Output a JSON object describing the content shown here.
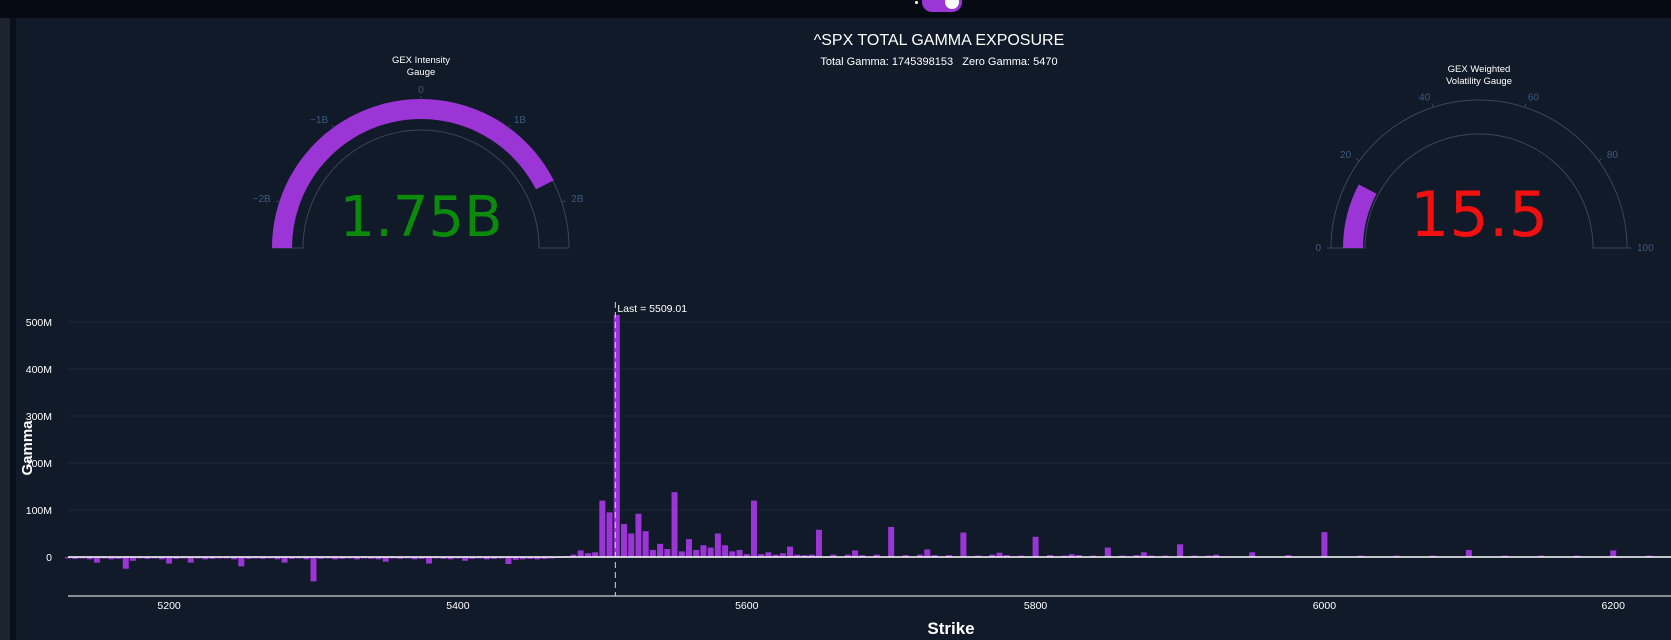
{
  "header": {
    "title": "^SPX TOTAL GAMMA EXPOSURE",
    "subtitle": "Total Gamma: 1745398153   Zero Gamma: 5470"
  },
  "gauges": {
    "gex": {
      "title_line1": "GEX Intensity",
      "title_line2": "Gauge",
      "value_text": "1.75B",
      "value": 1.75,
      "range": [
        -2.5,
        2.5
      ],
      "ticks": [
        {
          "v": -2,
          "label": "−2B"
        },
        {
          "v": -1,
          "label": "−1B"
        },
        {
          "v": 0,
          "label": "0"
        },
        {
          "v": 1,
          "label": "1B"
        },
        {
          "v": 2,
          "label": "2B"
        }
      ],
      "bar_color": "#9b35d6",
      "value_color": "#0b8a0b"
    },
    "vol": {
      "title_line1": "GEX Weighted",
      "title_line2": "Volatility Gauge",
      "value_text": "15.5",
      "value": 15.5,
      "range": [
        0,
        100
      ],
      "ticks": [
        {
          "v": 0,
          "label": "0"
        },
        {
          "v": 20,
          "label": "20"
        },
        {
          "v": 40,
          "label": "40"
        },
        {
          "v": 60,
          "label": "60"
        },
        {
          "v": 80,
          "label": "80"
        },
        {
          "v": 100,
          "label": "100"
        }
      ],
      "bar_color": "#9b35d6",
      "value_color": "#f01010"
    }
  },
  "chart_data": {
    "type": "bar",
    "title": "",
    "xlabel": "Strike",
    "ylabel": "Gamma",
    "xlim": [
      5130,
      6240
    ],
    "ylim": [
      -80000000,
      540000000
    ],
    "xticks": [
      5200,
      5400,
      5600,
      5800,
      6000,
      6200
    ],
    "yticks": [
      {
        "v": 0,
        "label": "0"
      },
      {
        "v": 100000000,
        "label": "100M"
      },
      {
        "v": 200000000,
        "label": "200M"
      },
      {
        "v": 300000000,
        "label": "300M"
      },
      {
        "v": 400000000,
        "label": "400M"
      },
      {
        "v": 500000000,
        "label": "500M"
      }
    ],
    "bar_color": "#9b35d6",
    "annotation": {
      "text": "Last = 5509.01",
      "x": 5509.01
    },
    "x": [
      5130,
      5135,
      5140,
      5145,
      5150,
      5155,
      5160,
      5165,
      5170,
      5175,
      5180,
      5185,
      5190,
      5195,
      5200,
      5205,
      5210,
      5215,
      5220,
      5225,
      5230,
      5235,
      5240,
      5245,
      5250,
      5255,
      5260,
      5265,
      5270,
      5275,
      5280,
      5285,
      5290,
      5295,
      5300,
      5305,
      5310,
      5315,
      5320,
      5325,
      5330,
      5335,
      5340,
      5345,
      5350,
      5355,
      5360,
      5365,
      5370,
      5375,
      5380,
      5385,
      5390,
      5395,
      5400,
      5405,
      5410,
      5415,
      5420,
      5425,
      5430,
      5435,
      5440,
      5445,
      5450,
      5455,
      5460,
      5465,
      5470,
      5475,
      5480,
      5485,
      5490,
      5495,
      5500,
      5505,
      5510,
      5515,
      5520,
      5525,
      5530,
      5535,
      5540,
      5545,
      5550,
      5555,
      5560,
      5565,
      5570,
      5575,
      5580,
      5585,
      5590,
      5595,
      5600,
      5605,
      5610,
      5615,
      5620,
      5625,
      5630,
      5635,
      5640,
      5645,
      5650,
      5660,
      5670,
      5675,
      5680,
      5690,
      5700,
      5710,
      5720,
      5725,
      5730,
      5740,
      5750,
      5760,
      5770,
      5775,
      5780,
      5790,
      5800,
      5810,
      5820,
      5825,
      5830,
      5840,
      5850,
      5860,
      5870,
      5875,
      5880,
      5890,
      5900,
      5910,
      5920,
      5925,
      5950,
      5975,
      6000,
      6025,
      6050,
      6075,
      6100,
      6125,
      6150,
      6175,
      6200,
      6225
    ],
    "values": [
      -3000000,
      -4000000,
      -3000000,
      -5000000,
      -12000000,
      -3000000,
      -5000000,
      -4000000,
      -25000000,
      -8000000,
      -3000000,
      -4000000,
      -3000000,
      -5000000,
      -14000000,
      -4000000,
      -3000000,
      -12000000,
      -3000000,
      -5000000,
      -4000000,
      -3000000,
      -3000000,
      -5000000,
      -20000000,
      -4000000,
      -3000000,
      -4000000,
      -3000000,
      -5000000,
      -12000000,
      -4000000,
      -3000000,
      -5000000,
      -52000000,
      -4000000,
      -3000000,
      -5000000,
      -4000000,
      -3000000,
      -5000000,
      -3000000,
      -4000000,
      -5000000,
      -10000000,
      -3000000,
      -4000000,
      -3000000,
      -5000000,
      -4000000,
      -14000000,
      -3000000,
      -4000000,
      -5000000,
      -3000000,
      -8000000,
      -4000000,
      -3000000,
      -5000000,
      -4000000,
      -3000000,
      -15000000,
      -6000000,
      -5000000,
      -4000000,
      -5000000,
      -4000000,
      -3000000,
      -2000000,
      2000000,
      5000000,
      14000000,
      8000000,
      10000000,
      120000000,
      95000000,
      515000000,
      70000000,
      50000000,
      92000000,
      55000000,
      15000000,
      28000000,
      17000000,
      138000000,
      12000000,
      38000000,
      15000000,
      25000000,
      20000000,
      50000000,
      25000000,
      12000000,
      15000000,
      6000000,
      120000000,
      6000000,
      10000000,
      5000000,
      8000000,
      22000000,
      5000000,
      4000000,
      5000000,
      58000000,
      5000000,
      5000000,
      14000000,
      4000000,
      5000000,
      64000000,
      4000000,
      5000000,
      16000000,
      4000000,
      4000000,
      52000000,
      3000000,
      5000000,
      9000000,
      4000000,
      3000000,
      43000000,
      4000000,
      3000000,
      6000000,
      4000000,
      3000000,
      20000000,
      3000000,
      4000000,
      10000000,
      3000000,
      3000000,
      27000000,
      3000000,
      3000000,
      5000000,
      10000000,
      4000000,
      53000000,
      3000000,
      3000000,
      3000000,
      15000000,
      3000000,
      3000000,
      3000000,
      14000000,
      3000000
    ]
  }
}
